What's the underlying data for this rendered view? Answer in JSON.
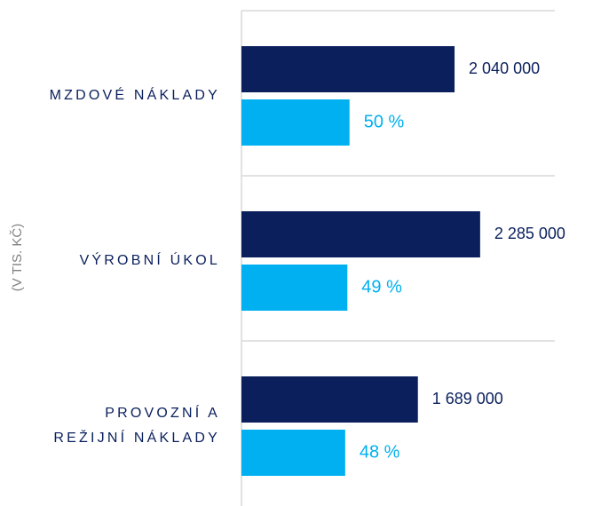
{
  "chart_data": {
    "type": "bar",
    "orientation": "horizontal",
    "axis_label": "(V TIS. KČ)",
    "categories": [
      "MZDOVÉ NÁKLADY",
      "VÝROBNÍ ÚKOL",
      "PROVOZNÍ A\nREŽIJNÍ NÁKLADY"
    ],
    "xlim": [
      0,
      3000000
    ],
    "x2lim": [
      0,
      145
    ],
    "series": [
      {
        "color": "#0a1f5c",
        "values": [
          2040000,
          2285000,
          1689000
        ],
        "value_labels": [
          "2 040 000",
          "2 285 000",
          "1 689 000"
        ]
      },
      {
        "color": "#00b0f0",
        "axis": "x2",
        "values": [
          50,
          49,
          48
        ],
        "value_labels": [
          "50 %",
          "49 %",
          "48 %"
        ]
      }
    ]
  }
}
